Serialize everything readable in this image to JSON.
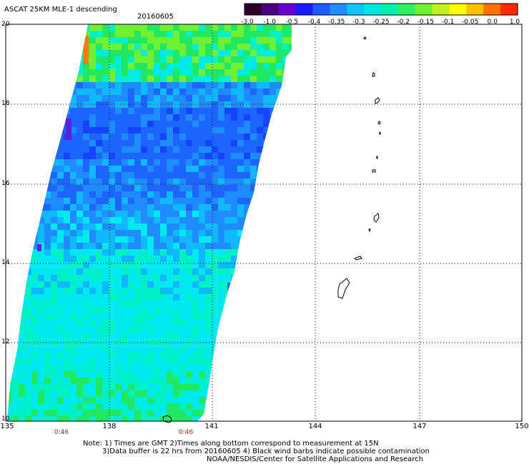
{
  "header": {
    "title": "ASCAT 25KM MLE-1 descending",
    "date": "20160605"
  },
  "colorbar": {
    "labels": [
      "-3.0",
      "-1.0",
      "-0.5",
      "-0.4",
      "-0.35",
      "-0.3",
      "-0.25",
      "-0.2",
      "-0.15",
      "-0.1",
      "-0.05",
      "0.0",
      "1.0"
    ],
    "colors": [
      "#2a0024",
      "#4a0080",
      "#6a00d0",
      "#1a1aff",
      "#1e5cff",
      "#1e8cff",
      "#10c4ff",
      "#00e6e0",
      "#00f0b0",
      "#30f060",
      "#70f030",
      "#c0f020",
      "#ffff00",
      "#ffc000",
      "#ff7000",
      "#ff2a00"
    ]
  },
  "map": {
    "lat_labels": [
      "20",
      "18",
      "16",
      "14",
      "12",
      "10"
    ],
    "lon_labels": [
      "135",
      "138",
      "141",
      "144",
      "147",
      "150"
    ],
    "time_labels": [
      "0:46",
      "0:46"
    ],
    "swath_colors": {
      "deep_blue": "#1444ff",
      "blue": "#1e64ff",
      "mid_blue": "#1e8cff",
      "sky": "#10b8ff",
      "cyan": "#00e8f0",
      "aqua": "#00f0c8",
      "green": "#20e860",
      "lime": "#70f030",
      "orange": "#ff7a10",
      "violet": "#5a20e0"
    }
  },
  "notes": {
    "line1": "Note: 1) Times are GMT 2)Times along bottom correspond to measurement at 15N",
    "line2": "3)Data buffer is 22 hrs from 20160605 4) Black wind barbs indicate possible contamination",
    "credit": "NOAA/NESDIS/Center for Satellite Applications and Research"
  }
}
